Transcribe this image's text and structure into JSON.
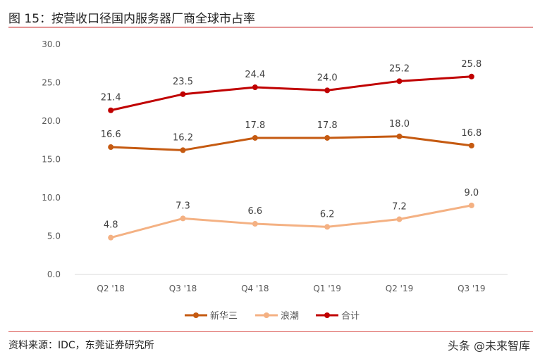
{
  "title": "图 15：按营收口径国内服务器厂商全球市占率",
  "source": "资料来源：IDC，东莞证券研究所",
  "watermark": "头条 @未来智库",
  "chart_data": {
    "type": "line",
    "title": "",
    "xlabel": "",
    "ylabel": "",
    "categories": [
      "Q2 '18",
      "Q3 '18",
      "Q4 '18",
      "Q1 '19",
      "Q2 '19",
      "Q3 '19"
    ],
    "ylim": [
      0,
      30
    ],
    "yticks": [
      "0.0",
      "5.0",
      "10.0",
      "15.0",
      "20.0",
      "25.0",
      "30.0"
    ],
    "grid": false,
    "legend_position": "bottom",
    "series": [
      {
        "name": "新华三",
        "color": "#C55A11",
        "values": [
          16.6,
          16.2,
          17.8,
          17.8,
          18.0,
          16.8
        ]
      },
      {
        "name": "浪潮",
        "color": "#F4B183",
        "values": [
          4.8,
          7.3,
          6.6,
          6.2,
          7.2,
          9.0
        ]
      },
      {
        "name": "合计",
        "color": "#C00000",
        "values": [
          21.4,
          23.5,
          24.4,
          24.0,
          25.2,
          25.8
        ]
      }
    ]
  }
}
